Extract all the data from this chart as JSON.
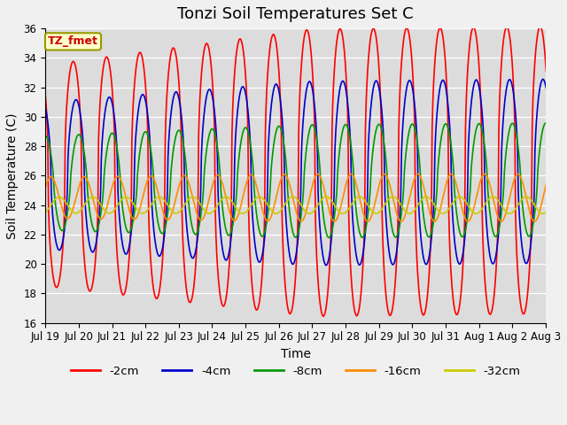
{
  "title": "Tonzi Soil Temperatures Set C",
  "xlabel": "Time",
  "ylabel": "Soil Temperature (C)",
  "ylim": [
    16,
    36
  ],
  "yticks": [
    16,
    18,
    20,
    22,
    24,
    26,
    28,
    30,
    32,
    34,
    36
  ],
  "x_tick_labels": [
    "Jul 19",
    "Jul 20",
    "Jul 21",
    "Jul 22",
    "Jul 23",
    "Jul 24",
    "Jul 25",
    "Jul 26",
    "Jul 27",
    "Jul 28",
    "Jul 29",
    "Jul 30",
    "Jul 31",
    "Aug 1",
    "Aug 2",
    "Aug 3"
  ],
  "annotation_text": "TZ_fmet",
  "annotation_bg": "#ffffcc",
  "annotation_fg": "#cc0000",
  "annotation_edge": "#999900",
  "bg_color": "#dcdcdc",
  "fig_bg_color": "#f0f0f0",
  "line_colors": [
    "#ff0000",
    "#0000cc",
    "#009900",
    "#ff8c00",
    "#cccc00"
  ],
  "line_labels": [
    "-2cm",
    "-4cm",
    "-8cm",
    "-16cm",
    "-32cm"
  ],
  "line_width": 1.2,
  "title_fontsize": 13,
  "label_fontsize": 10,
  "tick_fontsize": 8.5
}
